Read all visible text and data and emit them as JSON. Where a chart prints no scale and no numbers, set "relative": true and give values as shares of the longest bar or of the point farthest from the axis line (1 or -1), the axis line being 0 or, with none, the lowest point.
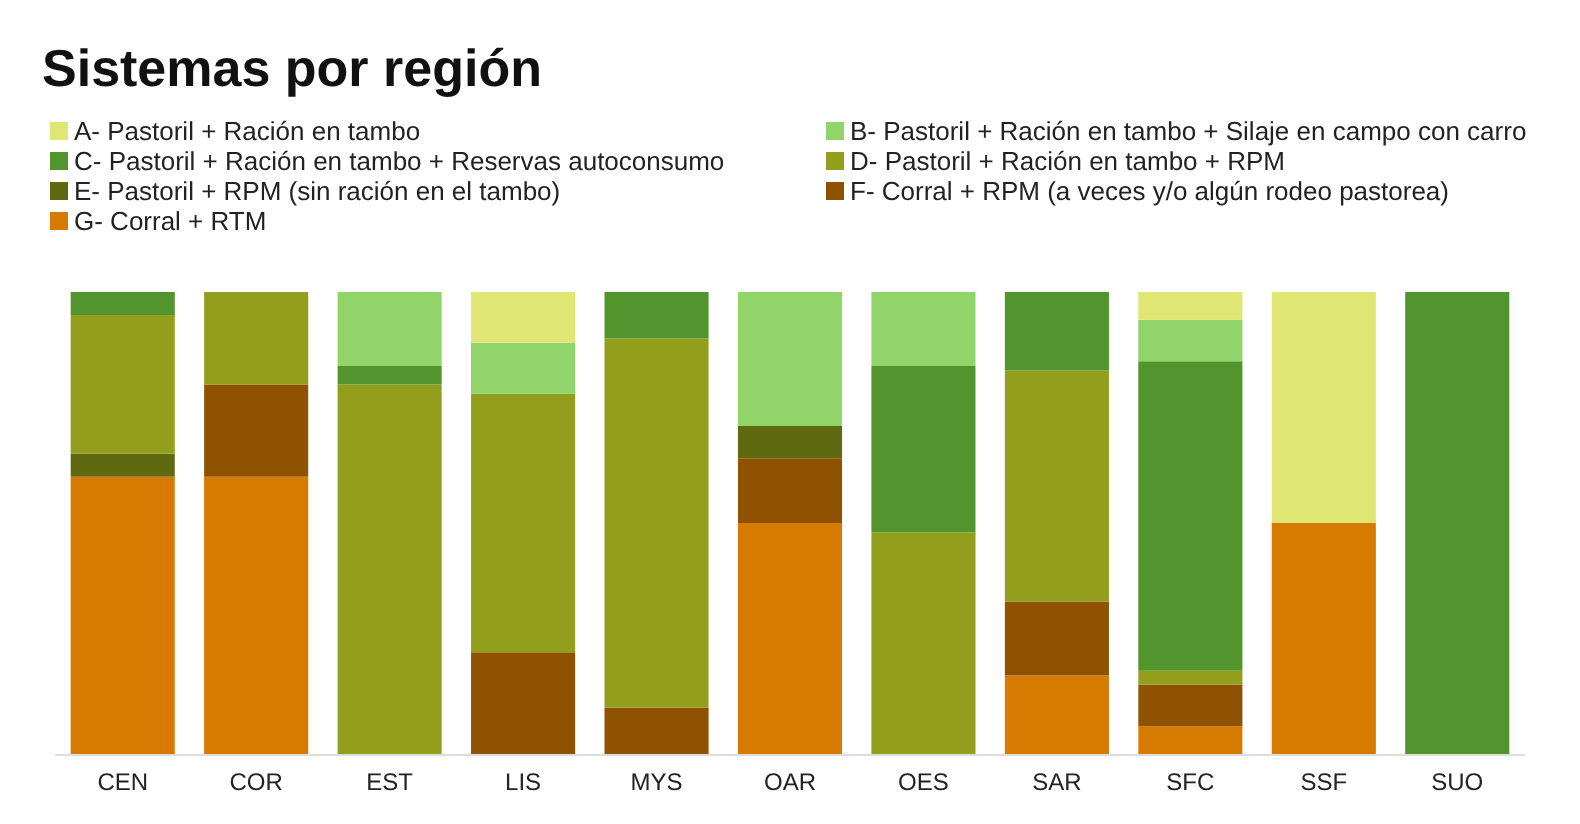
{
  "chart_data": {
    "type": "bar",
    "title": "Sistemas por región",
    "stacked": true,
    "relative": true,
    "legend": "top left",
    "categories": [
      "CEN",
      "COR",
      "EST",
      "LIS",
      "MYS",
      "OAR",
      "OES",
      "SAR",
      "SFC",
      "SSF",
      "SUO"
    ],
    "series": [
      {
        "name": "G- Corral + RTM",
        "color": "#d67a00",
        "values": [
          0.6,
          0.6,
          null,
          null,
          null,
          0.5,
          null,
          0.17,
          0.06,
          0.5,
          null
        ]
      },
      {
        "name": "F- Corral + RPM (a veces y/o algún rodeo pastorea)",
        "color": "#8f5200",
        "values": [
          null,
          0.2,
          null,
          0.22,
          0.1,
          0.14,
          null,
          0.16,
          0.09,
          null,
          null
        ]
      },
      {
        "name": "E- Pastoril + RPM (sin ración en el tambo)",
        "color": "#5f6a10",
        "values": [
          0.05,
          null,
          null,
          null,
          null,
          0.07,
          null,
          null,
          null,
          null,
          null
        ]
      },
      {
        "name": "D- Pastoril + Ración en tambo + RPM",
        "color": "#949e1d",
        "values": [
          0.3,
          0.2,
          0.8,
          0.56,
          0.8,
          null,
          0.48,
          0.5,
          0.03,
          null,
          null
        ]
      },
      {
        "name": "C- Pastoril + Ración en tambo + Reservas autoconsumo",
        "color": "#52952c",
        "values": [
          0.05,
          null,
          0.04,
          null,
          0.1,
          null,
          0.36,
          0.17,
          0.67,
          null,
          1.0
        ]
      },
      {
        "name": "B- Pastoril + Ración en tambo + Silaje en campo con carro",
        "color": "#90d46a",
        "values": [
          null,
          null,
          0.16,
          0.11,
          null,
          0.29,
          0.16,
          null,
          0.09,
          null,
          null
        ]
      },
      {
        "name": "A- Pastoril + Ración en tambo",
        "color": "#e0e673",
        "values": [
          null,
          null,
          null,
          0.11,
          null,
          null,
          null,
          null,
          0.06,
          0.5,
          null
        ]
      }
    ]
  }
}
